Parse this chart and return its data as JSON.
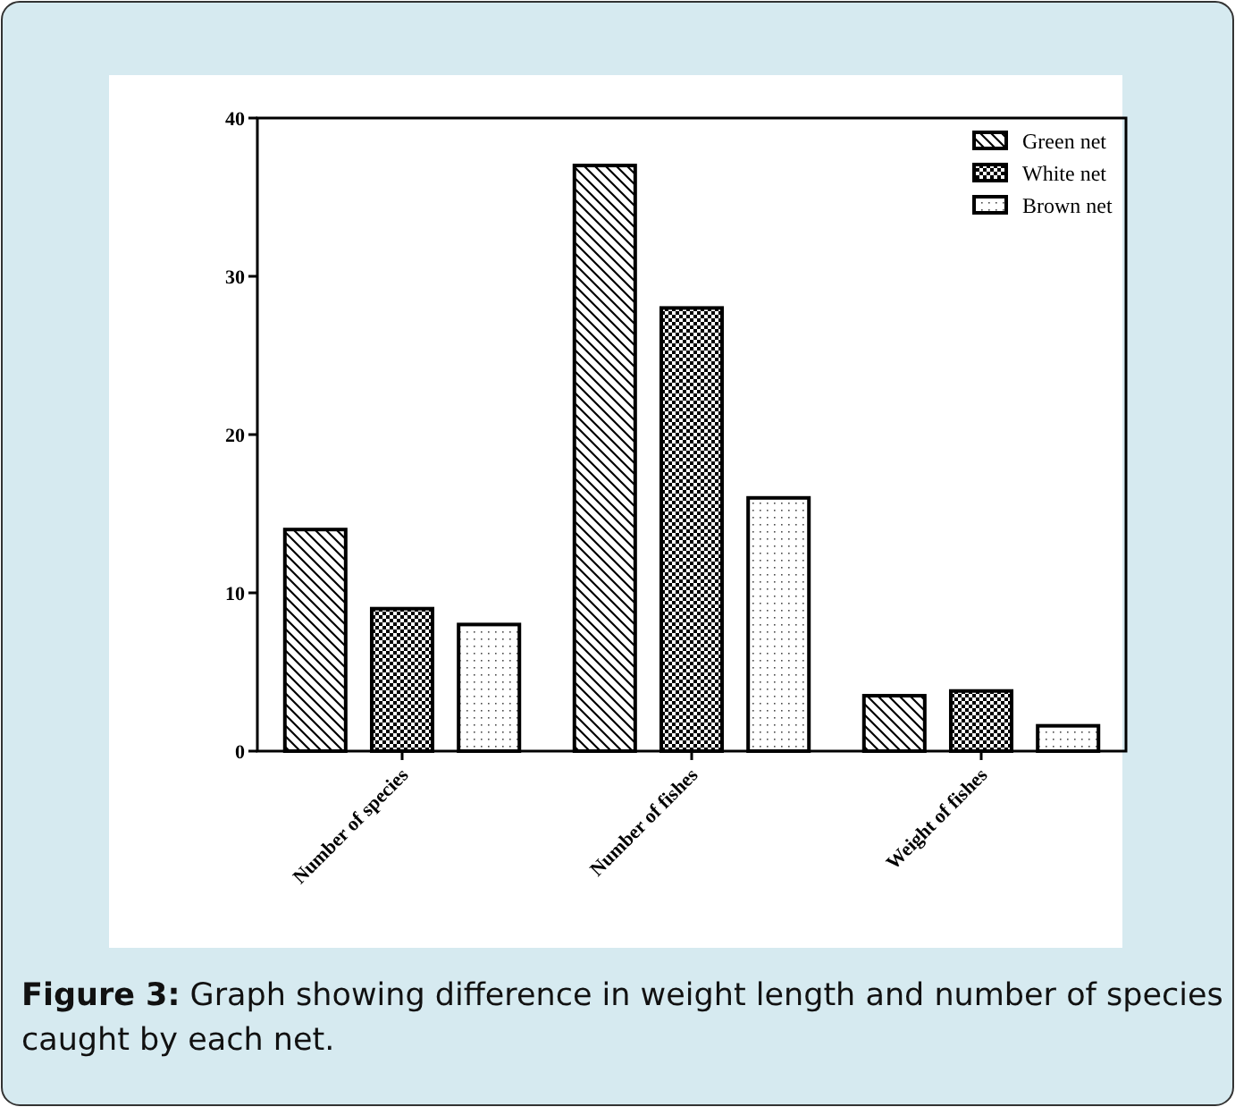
{
  "chart_data": {
    "type": "bar",
    "categories": [
      "Number of species",
      "Number of fishes",
      "Weight of fishes"
    ],
    "series": [
      {
        "name": "Green net",
        "color": "#000000",
        "values": [
          14,
          37,
          3.5
        ]
      },
      {
        "name": "White net",
        "color": "#000000",
        "values": [
          9,
          28,
          3.8
        ]
      },
      {
        "name": "Brown net",
        "color": "#000000",
        "values": [
          8,
          16,
          1.6
        ]
      }
    ],
    "ylim": [
      0,
      40
    ],
    "yticks": [
      0,
      10,
      20,
      30,
      40
    ],
    "grid": false,
    "legend": "top right",
    "annotations": [
      "Figure 3: Graph showing difference in weight length and number of species caught by each net."
    ]
  }
}
